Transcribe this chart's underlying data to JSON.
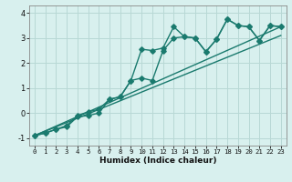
{
  "title": "",
  "xlabel": "Humidex (Indice chaleur)",
  "ylabel": "",
  "bg_color": "#d8f0ee",
  "grid_color": "#b8d8d5",
  "line_color": "#1a7a6e",
  "xlim": [
    -0.5,
    23.5
  ],
  "ylim": [
    -1.3,
    4.3
  ],
  "xticks": [
    0,
    1,
    2,
    3,
    4,
    5,
    6,
    7,
    8,
    9,
    10,
    11,
    12,
    13,
    14,
    15,
    16,
    17,
    18,
    19,
    20,
    21,
    22,
    23
  ],
  "yticks": [
    -1,
    0,
    1,
    2,
    3,
    4
  ],
  "line1_x": [
    0,
    1,
    2,
    3,
    4,
    5,
    6,
    7,
    8,
    9,
    10,
    11,
    12,
    13,
    14,
    15,
    16,
    17,
    18,
    19,
    20,
    21,
    22,
    23
  ],
  "line1_y": [
    -0.9,
    -0.8,
    -0.65,
    -0.55,
    -0.15,
    -0.1,
    0.0,
    0.55,
    0.65,
    1.3,
    2.55,
    2.5,
    2.6,
    3.45,
    3.05,
    3.0,
    2.45,
    2.95,
    3.75,
    3.5,
    3.45,
    2.9,
    3.5,
    3.45
  ],
  "line2_x": [
    0,
    1,
    2,
    3,
    4,
    5,
    6,
    7,
    8,
    9,
    10,
    11,
    12,
    13,
    14,
    15,
    16,
    17,
    18,
    19,
    20,
    21,
    22,
    23
  ],
  "line2_y": [
    -0.9,
    -0.8,
    -0.65,
    -0.5,
    -0.1,
    0.05,
    0.15,
    0.55,
    0.65,
    1.3,
    1.4,
    1.3,
    2.5,
    3.0,
    3.05,
    3.0,
    2.45,
    2.95,
    3.75,
    3.5,
    3.45,
    2.9,
    3.5,
    3.45
  ],
  "line3_x": [
    0,
    23
  ],
  "line3_y": [
    -0.9,
    3.45
  ],
  "line4_x": [
    0,
    23
  ],
  "line4_y": [
    -0.9,
    3.1
  ],
  "marker_size": 2.8,
  "linewidth": 1.0
}
